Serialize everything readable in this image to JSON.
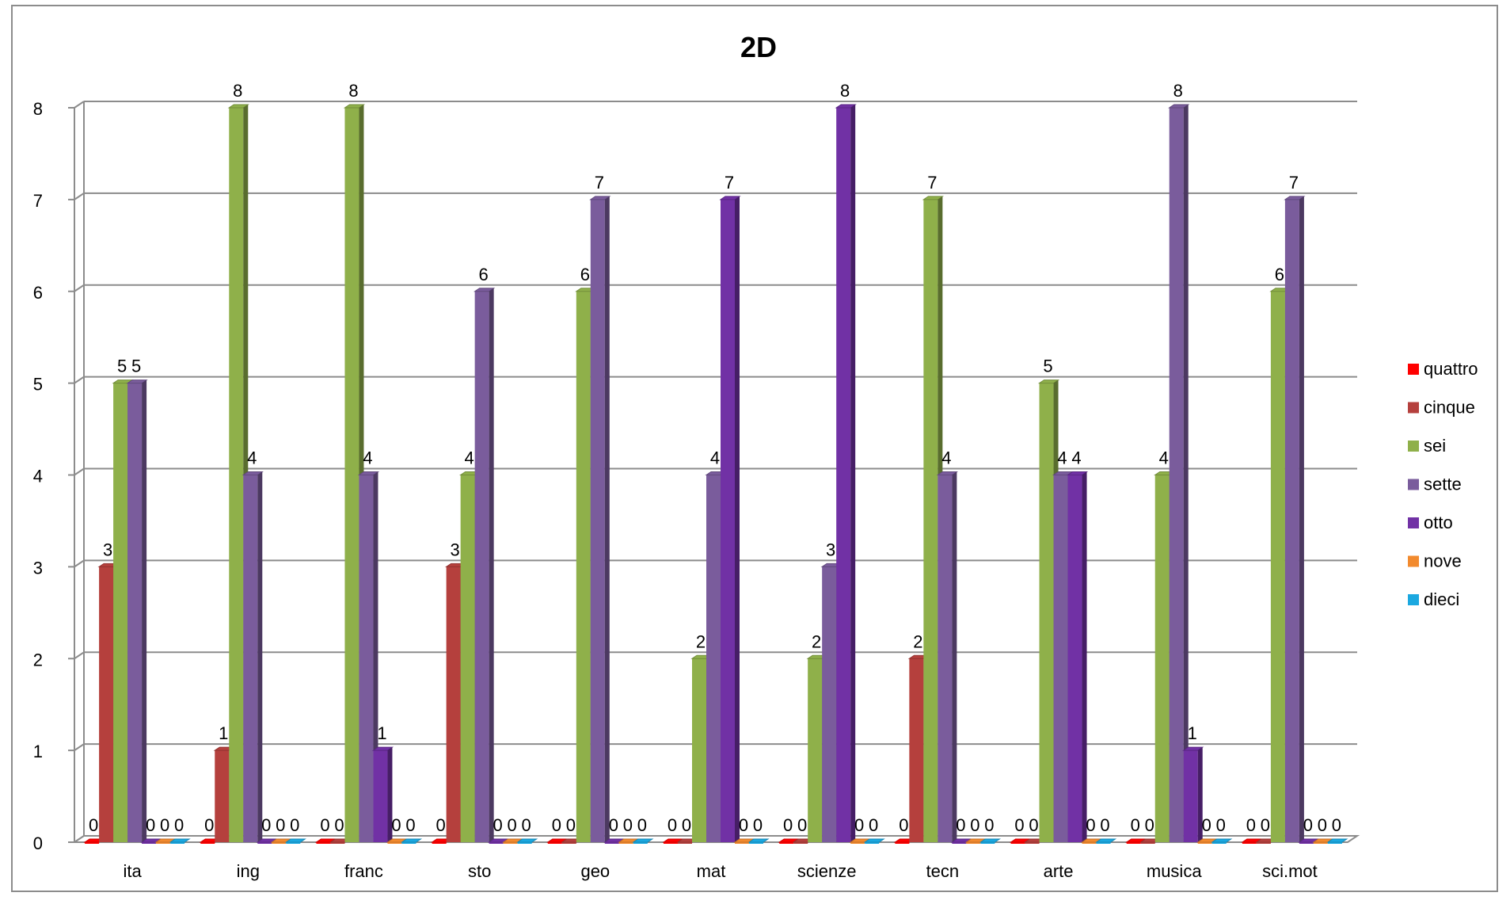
{
  "chart_data": {
    "type": "bar",
    "title": "2D",
    "xlabel": "",
    "ylabel": "",
    "ylim": [
      0,
      8
    ],
    "yticks": [
      0,
      1,
      2,
      3,
      4,
      5,
      6,
      7,
      8
    ],
    "grid": true,
    "legend_position": "right",
    "categories": [
      "ita",
      "ing",
      "franc",
      "sto",
      "geo",
      "mat",
      "scienze",
      "tecn",
      "arte",
      "musica",
      "sci.mot"
    ],
    "series": [
      {
        "name": "quattro",
        "color": "#ff0000",
        "values": [
          0,
          0,
          0,
          0,
          0,
          0,
          0,
          0,
          0,
          0,
          0
        ]
      },
      {
        "name": "cinque",
        "color": "#b5403d",
        "values": [
          3,
          1,
          0,
          3,
          0,
          0,
          0,
          2,
          0,
          0,
          0
        ]
      },
      {
        "name": "sei",
        "color": "#8fb04a",
        "values": [
          5,
          8,
          8,
          4,
          6,
          2,
          2,
          7,
          5,
          4,
          6
        ]
      },
      {
        "name": "sette",
        "color": "#7a5c9c",
        "values": [
          5,
          4,
          4,
          6,
          7,
          4,
          3,
          4,
          4,
          8,
          7
        ]
      },
      {
        "name": "otto",
        "color": "#7131a5",
        "values": [
          0,
          0,
          1,
          0,
          0,
          7,
          8,
          0,
          4,
          1,
          0
        ]
      },
      {
        "name": "nove",
        "color": "#f28a2e",
        "values": [
          0,
          0,
          0,
          0,
          0,
          0,
          0,
          0,
          0,
          0,
          0
        ]
      },
      {
        "name": "dieci",
        "color": "#1ba8e0",
        "values": [
          0,
          0,
          0,
          0,
          0,
          0,
          0,
          0,
          0,
          0,
          0
        ]
      }
    ],
    "data_labels": [
      [
        "0",
        "3",
        "5",
        "5",
        "0",
        "0",
        "0"
      ],
      [
        "0",
        "1",
        "8",
        "4",
        "0",
        "0",
        "0"
      ],
      [
        "0",
        "0",
        "8",
        "4",
        "1",
        "0",
        "0"
      ],
      [
        "0",
        "3",
        "4",
        "6",
        "0",
        "0",
        "0"
      ],
      [
        "0",
        "0",
        "6",
        "7",
        "0",
        "0",
        "0"
      ],
      [
        "0",
        "0",
        "2",
        "4",
        "7",
        "0",
        "0"
      ],
      [
        "0",
        "0",
        "2",
        "3",
        "8",
        "0",
        "0"
      ],
      [
        "0",
        "2",
        "7",
        "4",
        "0",
        "0",
        "0"
      ],
      [
        "0",
        "0",
        "5",
        "4",
        "4",
        "0",
        "0"
      ],
      [
        "0",
        "0",
        "4",
        "8",
        "1",
        "0",
        "0"
      ],
      [
        "0",
        "0",
        "6",
        "7",
        "0",
        "0",
        "0"
      ]
    ]
  }
}
